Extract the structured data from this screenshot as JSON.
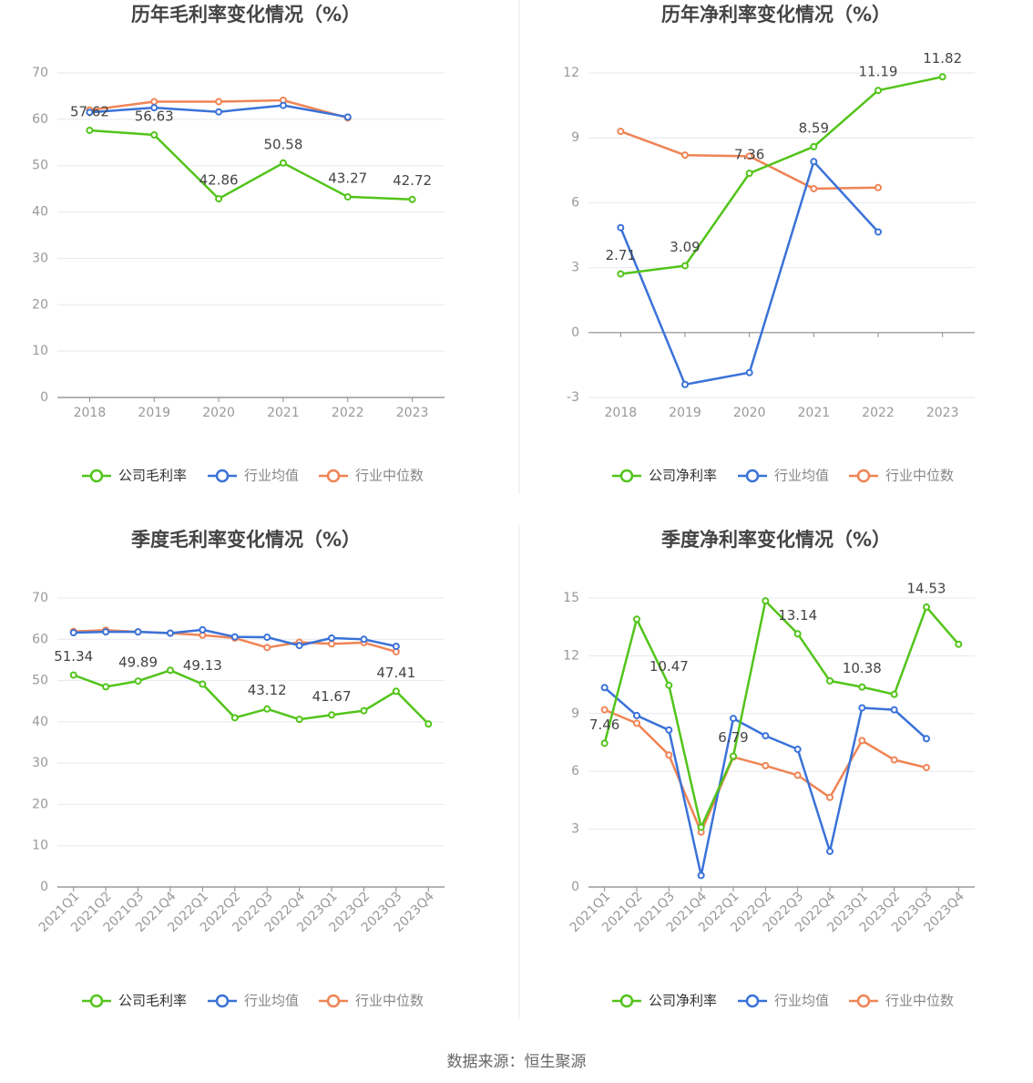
{
  "source_text": "数据来源：恒生聚源",
  "colors": {
    "company": "#52c41a",
    "avg": "#3a72d8",
    "median": "#ef8455"
  },
  "chart_data": [
    {
      "type": "line",
      "title": "历年毛利率变化情况（%）",
      "categories": [
        "2018",
        "2019",
        "2020",
        "2021",
        "2022",
        "2023"
      ],
      "ylim": [
        0,
        70
      ],
      "yticks": [
        0,
        10,
        20,
        30,
        40,
        50,
        60,
        70
      ],
      "grid": true,
      "legend_position": "bottom",
      "series": [
        {
          "name": "公司毛利率",
          "key": "company",
          "values": [
            57.62,
            56.63,
            42.86,
            50.58,
            43.27,
            42.72
          ],
          "labels": [
            "57.62",
            "56.63",
            "42.86",
            "50.58",
            "43.27",
            "42.72"
          ]
        },
        {
          "name": "行业均值",
          "key": "avg",
          "values": [
            61.5,
            62.5,
            61.6,
            63.0,
            60.5,
            null
          ]
        },
        {
          "name": "行业中位数",
          "key": "median",
          "values": [
            62.0,
            63.8,
            63.8,
            64.1,
            60.3,
            null
          ]
        }
      ]
    },
    {
      "type": "line",
      "title": "历年净利率变化情况（%）",
      "categories": [
        "2018",
        "2019",
        "2020",
        "2021",
        "2022",
        "2023"
      ],
      "ylim": [
        -3,
        12
      ],
      "yticks": [
        -3,
        0,
        3,
        6,
        9,
        12
      ],
      "grid": true,
      "legend_position": "bottom",
      "series": [
        {
          "name": "公司净利率",
          "key": "company",
          "values": [
            2.71,
            3.09,
            7.36,
            8.59,
            11.19,
            11.82
          ],
          "labels": [
            "2.71",
            "3.09",
            "7.36",
            "8.59",
            "11.19",
            "11.82"
          ]
        },
        {
          "name": "行业均值",
          "key": "avg",
          "values": [
            4.85,
            -2.4,
            -1.85,
            7.9,
            4.65,
            null
          ]
        },
        {
          "name": "行业中位数",
          "key": "median",
          "values": [
            9.3,
            8.2,
            8.15,
            6.65,
            6.7,
            null
          ]
        }
      ]
    },
    {
      "type": "line",
      "title": "季度毛利率变化情况（%）",
      "categories": [
        "2021Q1",
        "2021Q2",
        "2021Q3",
        "2021Q4",
        "2022Q1",
        "2022Q2",
        "2022Q3",
        "2022Q4",
        "2023Q1",
        "2023Q2",
        "2023Q3",
        "2023Q4"
      ],
      "ylim": [
        0,
        70
      ],
      "yticks": [
        0,
        10,
        20,
        30,
        40,
        50,
        60,
        70
      ],
      "grid": true,
      "legend_position": "bottom",
      "series": [
        {
          "name": "公司毛利率",
          "key": "company",
          "values": [
            51.34,
            48.5,
            49.89,
            52.5,
            49.13,
            41.0,
            43.12,
            40.6,
            41.67,
            42.7,
            47.41,
            39.5
          ],
          "labels": [
            "51.34",
            null,
            "49.89",
            null,
            "49.13",
            null,
            "43.12",
            null,
            "41.67",
            null,
            "47.41",
            null
          ]
        },
        {
          "name": "行业均值",
          "key": "avg",
          "values": [
            61.6,
            61.8,
            61.8,
            61.5,
            62.3,
            60.6,
            60.5,
            58.5,
            60.3,
            60.0,
            58.3,
            null
          ]
        },
        {
          "name": "行业中位数",
          "key": "median",
          "values": [
            61.9,
            62.2,
            61.8,
            61.5,
            61.0,
            60.3,
            58.0,
            59.3,
            58.9,
            59.2,
            57.0,
            null
          ]
        }
      ]
    },
    {
      "type": "line",
      "title": "季度净利率变化情况（%）",
      "categories": [
        "2021Q1",
        "2021Q2",
        "2021Q3",
        "2021Q4",
        "2022Q1",
        "2022Q2",
        "2022Q3",
        "2022Q4",
        "2023Q1",
        "2023Q2",
        "2023Q3",
        "2023Q4"
      ],
      "ylim": [
        0,
        15
      ],
      "yticks": [
        0,
        3,
        6,
        9,
        12,
        15
      ],
      "grid": true,
      "legend_position": "bottom",
      "series": [
        {
          "name": "公司净利率",
          "key": "company",
          "values": [
            7.46,
            13.9,
            10.47,
            3.1,
            6.79,
            14.85,
            13.14,
            10.7,
            10.38,
            10.0,
            14.53,
            12.6
          ],
          "labels": [
            "7.46",
            null,
            "10.47",
            null,
            "6.79",
            null,
            "13.14",
            null,
            "10.38",
            null,
            "14.53",
            null
          ]
        },
        {
          "name": "行业均值",
          "key": "avg",
          "values": [
            10.35,
            8.9,
            8.15,
            0.6,
            8.75,
            7.85,
            7.15,
            1.85,
            9.3,
            9.2,
            7.7,
            null
          ]
        },
        {
          "name": "行业中位数",
          "key": "median",
          "values": [
            9.2,
            8.5,
            6.85,
            2.85,
            6.75,
            6.3,
            5.8,
            4.65,
            7.6,
            6.6,
            6.2,
            null
          ]
        }
      ]
    }
  ]
}
